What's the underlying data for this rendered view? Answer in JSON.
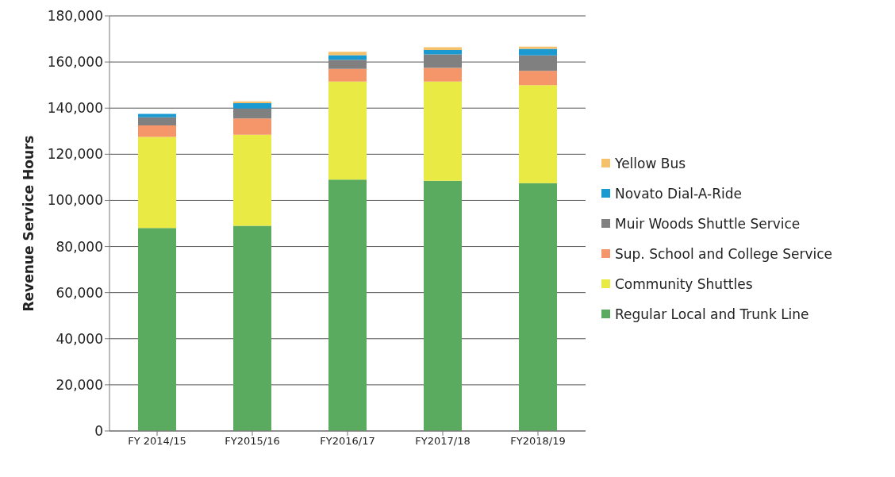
{
  "chart_data": {
    "type": "bar",
    "stacked": true,
    "ylabel": "Revenue Service Hours",
    "categories": [
      "FY 2014/15",
      "FY2015/16",
      "FY2016/17",
      "FY2017/18",
      "FY2018/19"
    ],
    "series": [
      {
        "name": "Regular Local and Trunk Line",
        "color": "#5aab5f",
        "values": [
          88000,
          89000,
          109000,
          108500,
          107500
        ]
      },
      {
        "name": "Community Shuttles",
        "color": "#eaea45",
        "values": [
          39500,
          39500,
          42500,
          43000,
          42500
        ]
      },
      {
        "name": "Sup. School and College Service",
        "color": "#f4956a",
        "values": [
          5000,
          7000,
          5500,
          6000,
          6200
        ]
      },
      {
        "name": "Muir Woods Shuttle Service",
        "color": "#808080",
        "values": [
          3500,
          4300,
          4000,
          5800,
          6700
        ]
      },
      {
        "name": "Novato Dial-A-Ride",
        "color": "#1a9ad0",
        "values": [
          1500,
          2300,
          2000,
          1900,
          2800
        ]
      },
      {
        "name": "Yellow Bus",
        "color": "#f5c26b",
        "values": [
          null,
          800,
          1400,
          1200,
          1000
        ]
      }
    ],
    "ylim": [
      0,
      180000
    ],
    "yticks": [
      0,
      {
        "value": 20000,
        "label": "20,000"
      },
      {
        "value": 40000,
        "label": "40,000"
      },
      {
        "value": 60000,
        "label": "60,000"
      },
      {
        "value": 80000,
        "label": "80,000"
      },
      {
        "value": 100000,
        "label": "100,000"
      },
      {
        "value": 120000,
        "label": "120,000"
      },
      {
        "value": 140000,
        "label": "140,000"
      },
      {
        "value": 160000,
        "label": "160,000"
      },
      {
        "value": 180000,
        "label": "180,000"
      }
    ],
    "grid": "y",
    "legend": "right"
  }
}
